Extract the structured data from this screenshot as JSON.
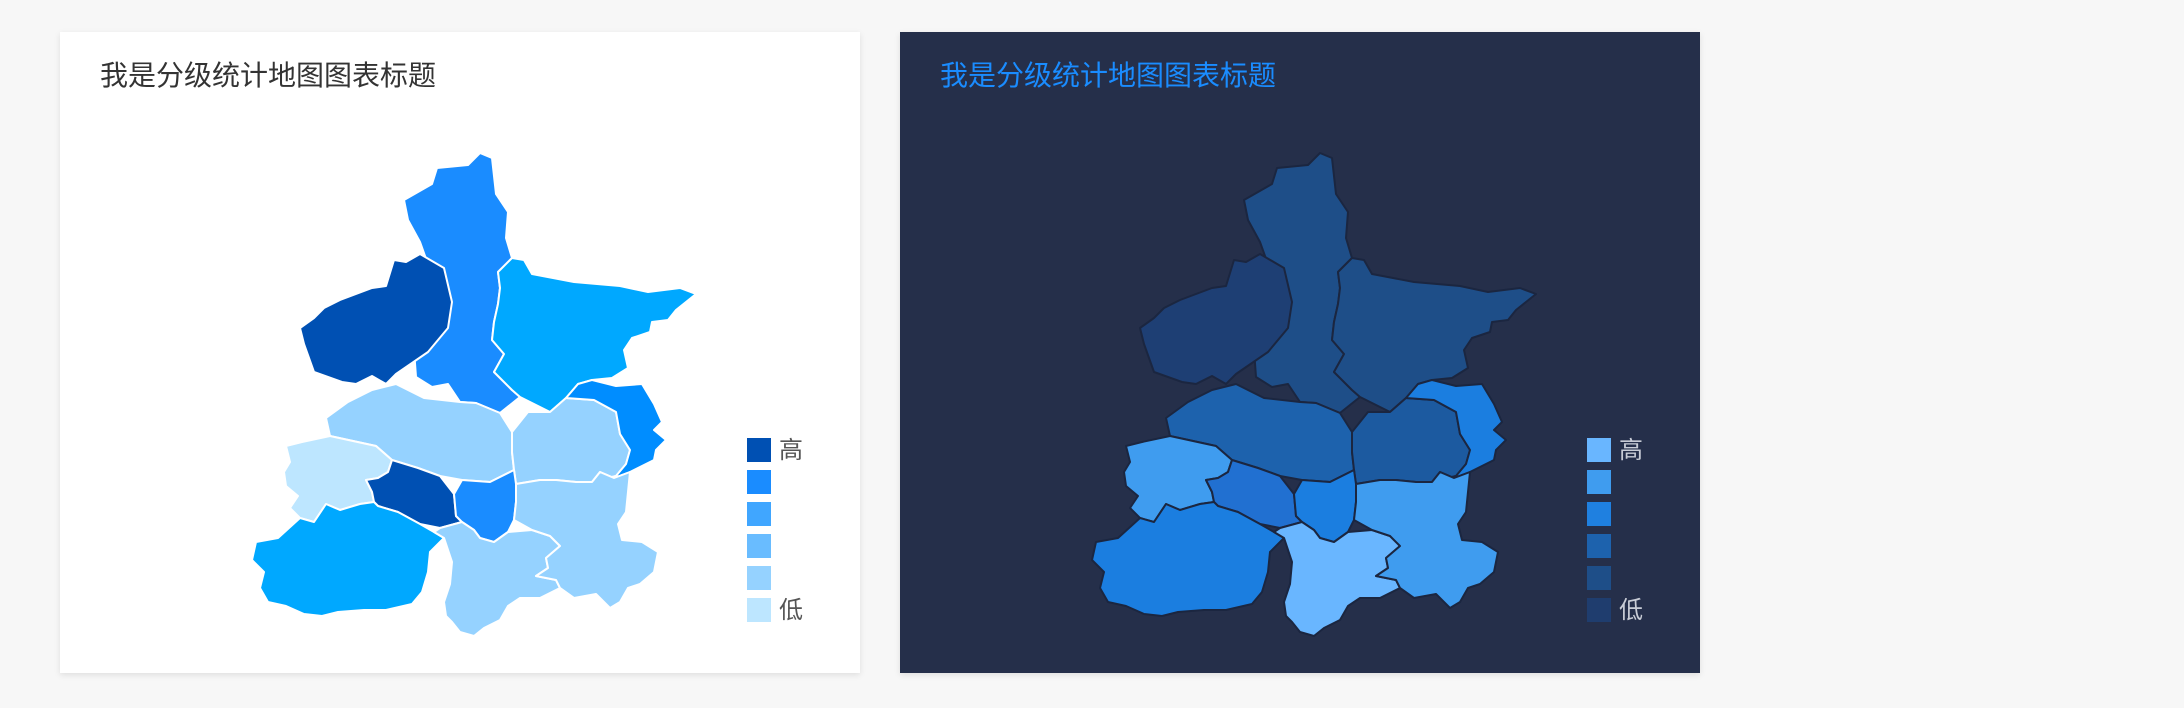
{
  "cards": [
    {
      "theme": "light",
      "title": "我是分级统计地图图表标题",
      "legend": {
        "high_label": "高",
        "low_label": "低",
        "colors": [
          "#0050b3",
          "#1a8cff",
          "#40a6ff",
          "#69bcff",
          "#95d2ff",
          "#bde6ff"
        ]
      },
      "region_border": "#ffffff",
      "region_colors": [
        "#1a8cff",
        "#0050b3",
        "#00a8ff",
        "#95d2ff",
        "#95d2ff",
        "#008dff",
        "#bde6ff",
        "#0050b3",
        "#1a8cff",
        "#00a8ff",
        "#95d2ff",
        "#95d2ff"
      ]
    },
    {
      "theme": "dark",
      "title": "我是分级统计地图图表标题",
      "legend": {
        "high_label": "高",
        "low_label": "低",
        "colors": [
          "#69b6ff",
          "#3f9cef",
          "#1f80e0",
          "#1d62ad",
          "#1e4e88",
          "#1f3d6e"
        ]
      },
      "region_border": "#1b2640",
      "region_colors": [
        "#1e4e88",
        "#1e3f74",
        "#1e4e88",
        "#1d62ad",
        "#1c5aa0",
        "#1b7ee0",
        "#3f9cef",
        "#2170d1",
        "#1b7ee0",
        "#1b7ee0",
        "#69b6ff",
        "#3f9cef"
      ]
    }
  ]
}
